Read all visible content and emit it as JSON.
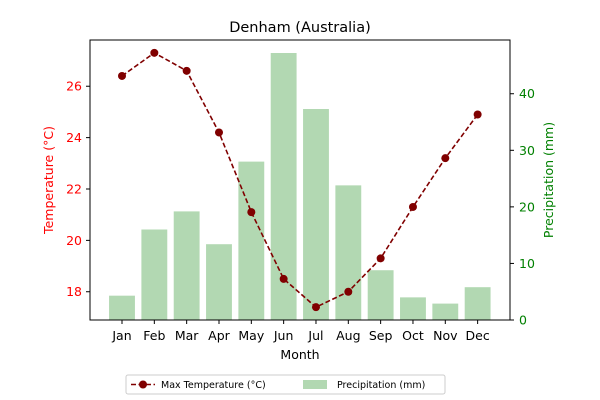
{
  "chart_data": {
    "type": "bar+line",
    "title": "Denham (Australia)",
    "xlabel": "Month",
    "categories": [
      "Jan",
      "Feb",
      "Mar",
      "Apr",
      "May",
      "Jun",
      "Jul",
      "Aug",
      "Sep",
      "Oct",
      "Nov",
      "Dec"
    ],
    "y_left": {
      "label": "Temperature (°C)",
      "color": "#ff0000",
      "ylim": [
        16.9,
        27.8
      ],
      "ticks": [
        18,
        20,
        22,
        24,
        26
      ]
    },
    "y_right": {
      "label": "Precipitation (mm)",
      "color": "#008000",
      "ylim": [
        0,
        49.5
      ],
      "ticks": [
        0,
        10,
        20,
        30,
        40
      ]
    },
    "series": [
      {
        "name": "Max Temperature (°C)",
        "kind": "line",
        "axis": "left",
        "color": "#800000",
        "values": [
          26.4,
          27.3,
          26.6,
          24.2,
          21.1,
          18.5,
          17.4,
          18.0,
          19.3,
          21.3,
          23.2,
          24.9
        ]
      },
      {
        "name": "Precipitation (mm)",
        "kind": "bar",
        "axis": "right",
        "color": "#b2d8b2",
        "values": [
          4.3,
          16.0,
          19.2,
          13.4,
          28.0,
          47.2,
          37.3,
          23.8,
          8.8,
          4.0,
          2.9,
          5.8
        ]
      }
    ],
    "legend_position": "bottom-center"
  }
}
